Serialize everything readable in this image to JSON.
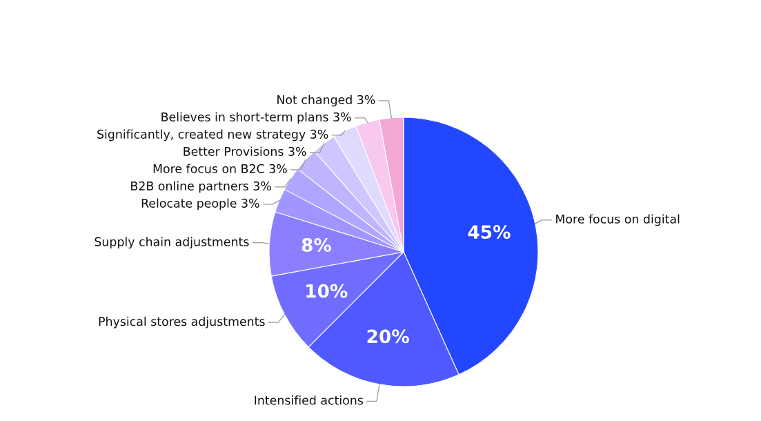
{
  "chart_data": {
    "type": "pie",
    "categories": [
      "More focus on digital",
      "Intensified actions",
      "Physical stores adjustments",
      "Supply chain adjustments",
      "Relocate people 3%",
      "B2B online partners 3%",
      "More focus on B2C 3%",
      "Better Provisions 3%",
      "Significantly, created new strategy 3%",
      "Believes in short-term plans 3%",
      "Not changed 3%"
    ],
    "values": [
      45,
      20,
      10,
      8,
      3,
      3,
      3,
      3,
      3,
      3,
      3
    ],
    "value_labels": [
      "45%",
      "20%",
      "10%",
      "8%",
      null,
      null,
      null,
      null,
      null,
      null,
      null
    ],
    "colors": [
      "#2346ff",
      "#5059ff",
      "#6f6cff",
      "#8a80ff",
      "#a196ff",
      "#b0a6ff",
      "#bfb5ff",
      "#cfc6ff",
      "#e0daff",
      "#f8c8ee",
      "#f2a8d3"
    ]
  }
}
